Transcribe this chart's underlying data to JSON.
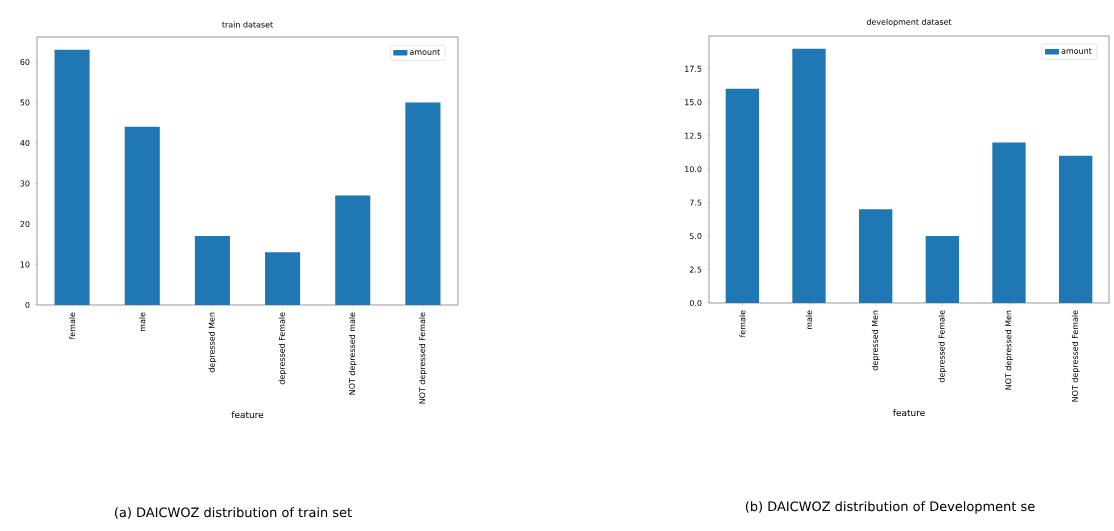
{
  "chart_data": [
    {
      "type": "bar",
      "title": "train dataset",
      "xlabel": "feature",
      "categories": [
        "female",
        "male",
        "depressed Men",
        "depressed Female",
        "NOT depressed male",
        "NOT depressed Female"
      ],
      "series": [
        {
          "name": "amount",
          "color": "#1f77b4",
          "values": [
            63,
            44,
            17,
            13,
            27,
            50
          ]
        }
      ],
      "ylim": [
        0,
        66.15
      ],
      "yticks": [
        0,
        10,
        20,
        30,
        40,
        50,
        60
      ],
      "legend": "top right",
      "grid": false,
      "annotations": [
        "(a) DAICWOZ distribution of train set"
      ]
    },
    {
      "type": "bar",
      "title": "development dataset",
      "xlabel": "feature",
      "categories": [
        "female",
        "male",
        "depressed Men",
        "depressed Female",
        "NOT depressed Men",
        "NOT depressed Female"
      ],
      "series": [
        {
          "name": "amount",
          "color": "#1f77b4",
          "values": [
            16,
            19,
            7,
            5,
            12,
            11
          ]
        }
      ],
      "ylim": [
        0,
        19.95
      ],
      "yticks": [
        {
          "value": 0,
          "label": "0.0"
        },
        {
          "value": 2.5,
          "label": "2.5"
        },
        {
          "value": 5,
          "label": "5.0"
        },
        {
          "value": 7.5,
          "label": "7.5"
        },
        {
          "value": 10,
          "label": "10.0"
        },
        {
          "value": 12.5,
          "label": "12.5"
        },
        {
          "value": 15,
          "label": "15.0"
        },
        {
          "value": 17.5,
          "label": "17.5"
        }
      ],
      "legend": "top right",
      "grid": false,
      "annotations": [
        "(b) DAICWOZ distribution of Development se"
      ]
    }
  ]
}
